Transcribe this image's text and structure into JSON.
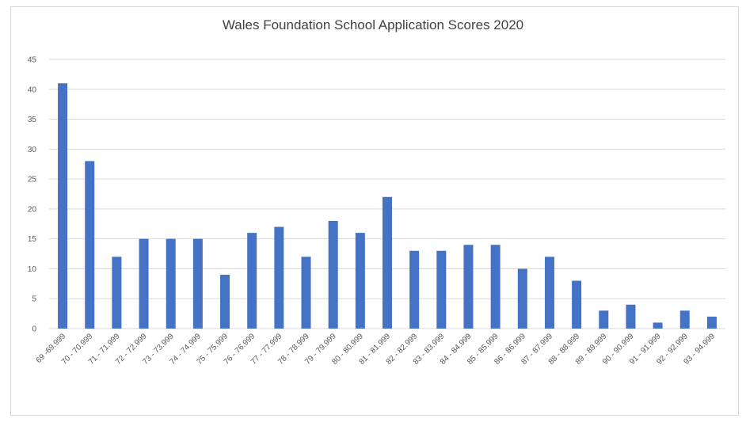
{
  "chart_data": {
    "type": "bar",
    "title": "Wales Foundation School Application Scores 2020",
    "xlabel": "",
    "ylabel": "",
    "categories": [
      "69 -69.999",
      "70 - 70.999",
      "71 - 71.999",
      "72 - 72.999",
      "73 - 73.999",
      "74 - 74.999",
      "75 - 75.999",
      "76 - 76.999",
      "77 - 77.999",
      "78 - 78.999",
      "79 - 79.999",
      "80 - 80.999",
      "81 - 81.999",
      "82 - 82.999",
      "83 - 83.999",
      "84 - 84.999",
      "85 - 85.999",
      "86 - 86.999",
      "87 - 87.999",
      "88 - 88.999",
      "89 - 89.999",
      "90 - 90.999",
      "91 - 91.999",
      "92 - 92.999",
      "93 - 94.999"
    ],
    "values": [
      41,
      28,
      12,
      15,
      15,
      15,
      9,
      16,
      17,
      12,
      18,
      16,
      22,
      13,
      13,
      14,
      14,
      10,
      12,
      8,
      3,
      4,
      1,
      3,
      2
    ],
    "ylim": [
      0,
      45
    ],
    "yticks": [
      0,
      5,
      10,
      15,
      20,
      25,
      30,
      35,
      40,
      45
    ],
    "grid": true,
    "legend": "none",
    "bar_color": "#4472c4",
    "grid_color": "#d9d9d9"
  }
}
